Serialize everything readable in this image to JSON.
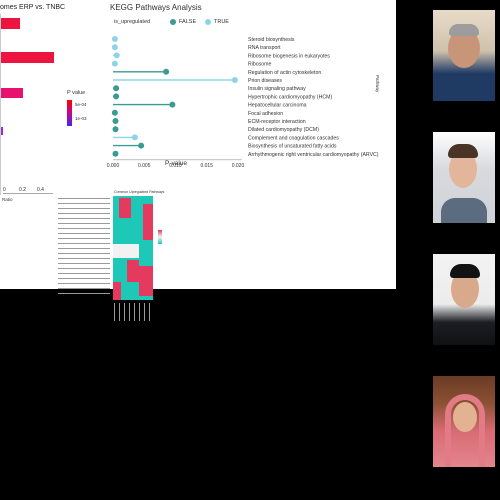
{
  "left_panel": {
    "title": "omes ERP vs. TNBC",
    "legend_title": "P value",
    "legend_ticks": [
      "5e-04",
      "1e-03"
    ],
    "axis_ticks": [
      "0",
      "0.2",
      "0.4"
    ],
    "axis_label": "Ratio"
  },
  "kegg": {
    "title": "KEGG Pathways Analysis",
    "legend_label": "is_upregulated",
    "legend_false": "FALSE",
    "legend_true": "TRUE",
    "x_label": "P-value",
    "y_label": "Pathway",
    "x_ticks": [
      "0.000",
      "0.005",
      "0.010",
      "0.015",
      "0.020"
    ]
  },
  "heatmap": {
    "title": "Common Upregulated Pathways"
  },
  "chart_data": {
    "type": "scatter",
    "title": "KEGG Pathways Analysis",
    "xlabel": "P-value",
    "ylabel": "Pathway",
    "xlim": [
      0,
      0.02
    ],
    "categories": [
      "Steroid biosynthesis",
      "RNA transport",
      "Ribosome biogenesis in eukaryotes",
      "Ribosome",
      "Regulation of actin cytoskeleton",
      "Prion diseases",
      "Insulin signaling pathway",
      "Hypertrophic cardiomyopathy (HCM)",
      "Hepatocellular carcinoma",
      "Focal adhesion",
      "ECM-receptor interaction",
      "Dilated cardiomyopathy (DCM)",
      "Complement and coagulation cascades",
      "Biosynthesis of unsaturated fatty acids",
      "Arrhythmogenic right ventricular cardiomyopathy (ARVC)"
    ],
    "values": [
      0.0003,
      0.0003,
      0.0006,
      0.0003,
      0.0085,
      0.0195,
      0.0005,
      0.0005,
      0.0095,
      0.0003,
      0.0004,
      0.0004,
      0.0035,
      0.0045,
      0.0004
    ],
    "is_upregulated": [
      true,
      true,
      true,
      true,
      false,
      true,
      false,
      false,
      false,
      false,
      false,
      false,
      true,
      false,
      false
    ],
    "colors": {
      "false": "#3a9b93",
      "true": "#8fd3e8"
    }
  }
}
